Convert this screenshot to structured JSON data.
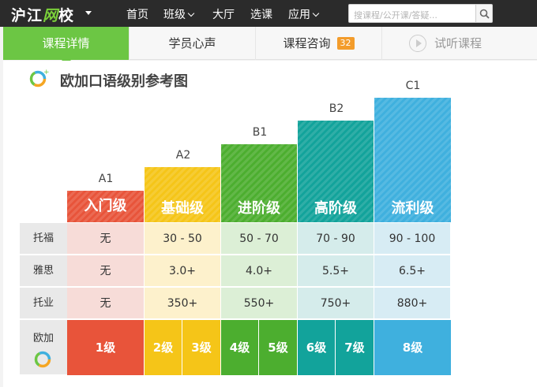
{
  "header": {
    "logo_main": "沪江",
    "logo_accent": "网",
    "logo_tail": "校",
    "nav": [
      {
        "label": "首页",
        "has_caret": false
      },
      {
        "label": "班级",
        "has_caret": true
      },
      {
        "label": "大厅",
        "has_caret": false
      },
      {
        "label": "选课",
        "has_caret": false
      },
      {
        "label": "应用",
        "has_caret": true
      }
    ],
    "search_placeholder": "搜课程/公开课/答疑..."
  },
  "tabs": [
    {
      "label": "课程详情",
      "active": true
    },
    {
      "label": "学员心声",
      "active": false
    },
    {
      "label": "课程咨询",
      "badge": "32",
      "active": false
    },
    {
      "label": "试听课程",
      "active": false
    }
  ],
  "section_title": "欧加口语级别参考图",
  "levels": [
    {
      "code": "A1",
      "name": "入门级",
      "color": "#e8543a"
    },
    {
      "code": "A2",
      "name": "基础级",
      "color": "#f5c518"
    },
    {
      "code": "B1",
      "name": "进阶级",
      "color": "#4cae2f"
    },
    {
      "code": "B2",
      "name": "高阶级",
      "color": "#12a39b"
    },
    {
      "code": "C1",
      "name": "流利级",
      "color": "#3fb0de"
    }
  ],
  "rows": [
    {
      "label": "托福",
      "values": [
        "无",
        "30 - 50",
        "50 - 70",
        "70 - 90",
        "90 - 100"
      ]
    },
    {
      "label": "雅思",
      "values": [
        "无",
        "3.0+",
        "4.0+",
        "5.5+",
        "6.5+"
      ]
    },
    {
      "label": "托业",
      "values": [
        "无",
        "350+",
        "550+",
        "750+",
        "880+"
      ]
    }
  ],
  "oujia": {
    "label": "欧加",
    "grades": [
      "1级",
      "2级",
      "3级",
      "4级",
      "5级",
      "6级",
      "7级",
      "8级"
    ]
  },
  "cell_tints": [
    "#f7dcd8",
    "#fdf1cc",
    "#dcefd6",
    "#d5eceb",
    "#d7ecf4"
  ]
}
